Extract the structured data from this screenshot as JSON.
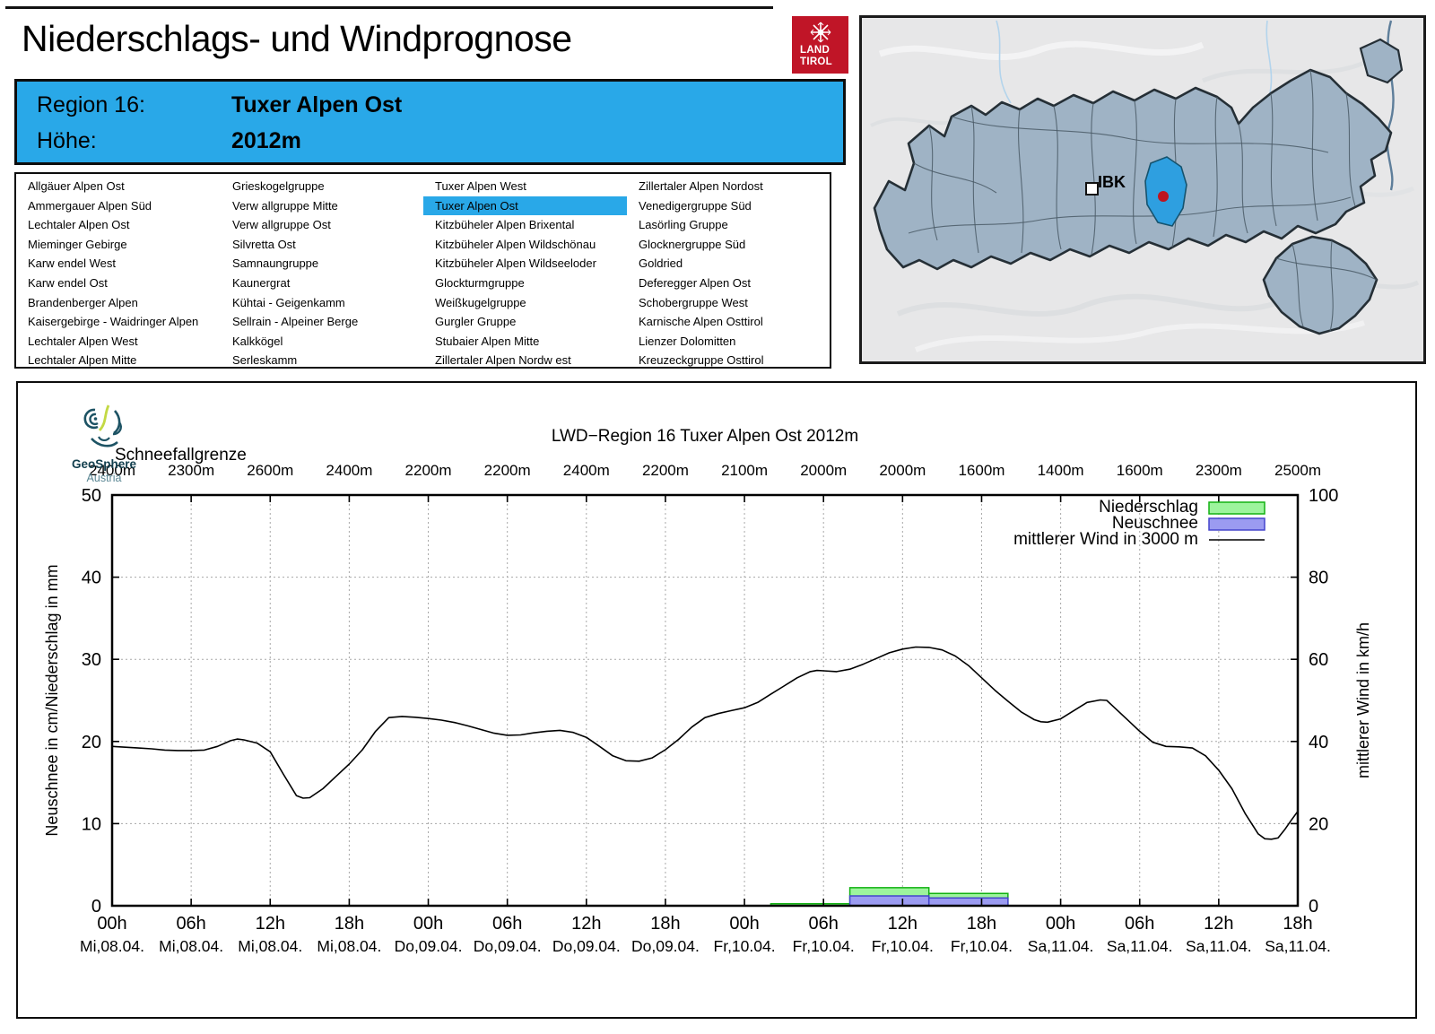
{
  "header": {
    "title": "Niederschlags- und Windprognose",
    "logo": {
      "line1": "LAND",
      "line2": "TIROL"
    }
  },
  "region_info": {
    "region_label": "Region 16:",
    "region_name": "Tuxer Alpen Ost",
    "altitude_label": "Höhe:",
    "altitude_value": "2012m"
  },
  "region_list": {
    "selected": "Tuxer Alpen Ost",
    "columns": [
      [
        "Allgäuer Alpen Ost",
        "Ammergauer Alpen Süd",
        "Lechtaler Alpen Ost",
        "Mieminger Gebirge",
        "Karw endel West",
        "Karw endel Ost",
        "Brandenberger Alpen",
        "Kaisergebirge - Waidringer Alpen",
        "Lechtaler Alpen West",
        "Lechtaler Alpen Mitte"
      ],
      [
        "Grieskogelgruppe",
        "Verw allgruppe Mitte",
        "Verw allgruppe Ost",
        "Silvretta Ost",
        "Samnaungruppe",
        "Kaunergrat",
        "Kühtai - Geigenkamm",
        "Sellrain - Alpeiner Berge",
        "Kalkkögel",
        "Serleskamm"
      ],
      [
        "Tuxer Alpen West",
        "Tuxer Alpen Ost",
        "Kitzbüheler Alpen Brixental",
        "Kitzbüheler Alpen Wildschönau",
        "Kitzbüheler Alpen Wildseeloder",
        "Glockturmgruppe",
        "Weißkugelgruppe",
        "Gurgler Gruppe",
        "Stubaier Alpen Mitte",
        "Zillertaler Alpen Nordw est"
      ],
      [
        "Zillertaler Alpen Nordost",
        "Venedigergruppe Süd",
        "Lasörling Gruppe",
        "Glocknergruppe Süd",
        "Goldried",
        "Deferegger Alpen Ost",
        "Schobergruppe West",
        "Karnische Alpen Osttirol",
        "Lienzer Dolomitten",
        "Kreuzeckgruppe Osttirol"
      ]
    ]
  },
  "map": {
    "city_label": "IBK"
  },
  "branding": {
    "geosphere_name": "GeoSphere",
    "geosphere_sub": "Austria"
  },
  "colors": {
    "accent_blue": "#29A8E8",
    "logo_red": "#C01527",
    "map_region_fill": "#9FB3C5",
    "map_highlight": "#2E9FE0",
    "map_marker_red": "#BE1420",
    "precip_fill": "#9DF49D",
    "precip_border": "#12B212",
    "snow_fill": "#9B9BF1",
    "snow_border": "#4444CC",
    "wind_line": "#000000",
    "grid": "#A8A8A8"
  },
  "chart_data": {
    "type": "line+bar",
    "title": "LWD−Region 16 Tuxer Alpen Ost 2012m",
    "snowline_label": "Schneefallgrenze",
    "snowline_values": [
      "2400m",
      "2300m",
      "2600m",
      "2400m",
      "2200m",
      "2200m",
      "2400m",
      "2200m",
      "2100m",
      "2000m",
      "2000m",
      "1600m",
      "1400m",
      "1600m",
      "2300m",
      "2500m"
    ],
    "ylabel_left": "Neuschnee in cm/Niederschlag in mm",
    "ylabel_right": "mittlerer Wind in km/h",
    "ylim_left": [
      0,
      50
    ],
    "ylim_right": [
      0,
      100
    ],
    "x_range_hours": [
      0,
      90
    ],
    "x_tick_step_hours": 6,
    "x_hour_labels": [
      "00h",
      "06h",
      "12h",
      "18h",
      "00h",
      "06h",
      "12h",
      "18h",
      "00h",
      "06h",
      "12h",
      "18h",
      "00h",
      "06h",
      "12h",
      "18h"
    ],
    "x_day_labels": [
      "Mi,08.04.",
      "Mi,08.04.",
      "Mi,08.04.",
      "Mi,08.04.",
      "Do,09.04.",
      "Do,09.04.",
      "Do,09.04.",
      "Do,09.04.",
      "Fr,10.04.",
      "Fr,10.04.",
      "Fr,10.04.",
      "Fr,10.04.",
      "Sa,11.04.",
      "Sa,11.04.",
      "Sa,11.04.",
      "Sa,11.04."
    ],
    "legend": [
      {
        "label": "Niederschlag",
        "type": "box",
        "series": "niederschlag"
      },
      {
        "label": "Neuschnee",
        "type": "box",
        "series": "neuschnee"
      },
      {
        "label": "mittlerer Wind in 3000 m",
        "type": "line",
        "series": "wind"
      }
    ],
    "bars_niederschlag_mm": [
      {
        "start_h": 50,
        "end_h": 56,
        "value": 0.25
      },
      {
        "start_h": 56,
        "end_h": 62,
        "value": 2.2
      },
      {
        "start_h": 62,
        "end_h": 68,
        "value": 1.5
      }
    ],
    "bars_neuschnee_cm": [
      {
        "start_h": 56,
        "end_h": 62,
        "value": 1.2
      },
      {
        "start_h": 62,
        "end_h": 68,
        "value": 0.95
      }
    ],
    "wind_kmh": [
      [
        0,
        38.8
      ],
      [
        1,
        38.6
      ],
      [
        2,
        38.4
      ],
      [
        3,
        38.2
      ],
      [
        4,
        37.9
      ],
      [
        5,
        37.8
      ],
      [
        6,
        37.8
      ],
      [
        7,
        37.9
      ],
      [
        8,
        38.8
      ],
      [
        9,
        40.2
      ],
      [
        9.5,
        40.6
      ],
      [
        10,
        40.4
      ],
      [
        11,
        39.6
      ],
      [
        12,
        37.5
      ],
      [
        13,
        32
      ],
      [
        14,
        26.8
      ],
      [
        14.5,
        26.2
      ],
      [
        15,
        26.3
      ],
      [
        16,
        28.5
      ],
      [
        17,
        31.5
      ],
      [
        18,
        34.5
      ],
      [
        19,
        38
      ],
      [
        20,
        42.5
      ],
      [
        21,
        45.8
      ],
      [
        22,
        46.1
      ],
      [
        23,
        45.9
      ],
      [
        24,
        45.6
      ],
      [
        25,
        45.2
      ],
      [
        26,
        44.6
      ],
      [
        27,
        43.8
      ],
      [
        28,
        42.9
      ],
      [
        29,
        42
      ],
      [
        30,
        41.5
      ],
      [
        31,
        41.6
      ],
      [
        32,
        42.1
      ],
      [
        33,
        42.5
      ],
      [
        34,
        42.7
      ],
      [
        35,
        42.2
      ],
      [
        36,
        41
      ],
      [
        37,
        38.8
      ],
      [
        38,
        36.5
      ],
      [
        39,
        35.3
      ],
      [
        40,
        35.2
      ],
      [
        41,
        36
      ],
      [
        42,
        38
      ],
      [
        43,
        40.5
      ],
      [
        44,
        43.5
      ],
      [
        45,
        45.8
      ],
      [
        46,
        46.8
      ],
      [
        47,
        47.5
      ],
      [
        48,
        48.2
      ],
      [
        49,
        49.5
      ],
      [
        50,
        51.5
      ],
      [
        51,
        53.5
      ],
      [
        52,
        55.5
      ],
      [
        53,
        57
      ],
      [
        53.5,
        57.3
      ],
      [
        54,
        57.2
      ],
      [
        55,
        57
      ],
      [
        56,
        57.6
      ],
      [
        57,
        58.8
      ],
      [
        58,
        60.2
      ],
      [
        59,
        61.6
      ],
      [
        60,
        62.5
      ],
      [
        61,
        63
      ],
      [
        62,
        62.9
      ],
      [
        63,
        62.3
      ],
      [
        64,
        60.8
      ],
      [
        65,
        58.5
      ],
      [
        66,
        55.5
      ],
      [
        67,
        52.5
      ],
      [
        68,
        49.8
      ],
      [
        69,
        47.2
      ],
      [
        70,
        45.3
      ],
      [
        70.5,
        44.8
      ],
      [
        71,
        44.7
      ],
      [
        72,
        45.5
      ],
      [
        73,
        47.5
      ],
      [
        74,
        49.5
      ],
      [
        75,
        50.1
      ],
      [
        75.5,
        50
      ],
      [
        76,
        48.5
      ],
      [
        77,
        45.5
      ],
      [
        78,
        42.5
      ],
      [
        79,
        39.8
      ],
      [
        80,
        38.8
      ],
      [
        81,
        38.7
      ],
      [
        82,
        38.4
      ],
      [
        83,
        36.5
      ],
      [
        84,
        33
      ],
      [
        85,
        28.5
      ],
      [
        86,
        22.5
      ],
      [
        87,
        17.5
      ],
      [
        87.5,
        16.3
      ],
      [
        88,
        16.2
      ],
      [
        88.5,
        16.5
      ],
      [
        89,
        18.5
      ],
      [
        89.5,
        20.8
      ],
      [
        90,
        23
      ]
    ]
  }
}
